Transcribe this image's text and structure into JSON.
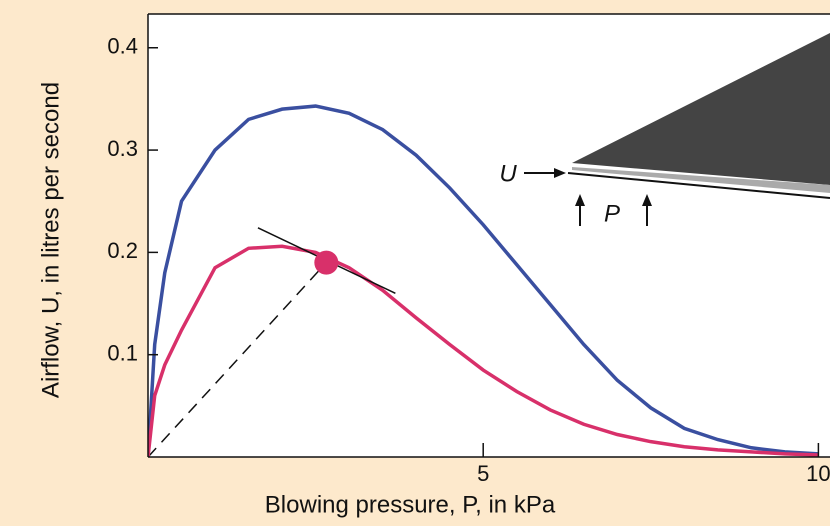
{
  "chart_data": {
    "type": "line",
    "x_label": "Blowing pressure, P, in kPa",
    "y_label": "Airflow, U, in litres per second",
    "x": [
      0,
      0.1,
      0.25,
      0.5,
      1,
      1.5,
      2,
      2.5,
      3,
      3.5,
      4,
      4.5,
      5,
      5.5,
      6,
      6.5,
      7,
      7.5,
      8,
      8.5,
      9,
      9.5,
      10
    ],
    "series": [
      {
        "color": "#3a4fa0",
        "values": [
          0,
          0.11,
          0.18,
          0.25,
          0.3,
          0.33,
          0.34,
          0.343,
          0.336,
          0.32,
          0.295,
          0.263,
          0.227,
          0.188,
          0.149,
          0.11,
          0.075,
          0.048,
          0.028,
          0.017,
          0.009,
          0.005,
          0.003
        ]
      },
      {
        "color": "#d8306a",
        "values": [
          0,
          0.06,
          0.09,
          0.124,
          0.185,
          0.204,
          0.206,
          0.2,
          0.185,
          0.163,
          0.136,
          0.11,
          0.085,
          0.064,
          0.046,
          0.032,
          0.022,
          0.015,
          0.01,
          0.007,
          0.005,
          0.003,
          0.002
        ]
      }
    ],
    "point": {
      "x": 2.66,
      "y": 0.19,
      "color": "#d8306a"
    },
    "tangent": {
      "x": [
        1.64,
        3.69
      ],
      "y": [
        0.224,
        0.16
      ]
    },
    "secant": {
      "x": [
        0,
        2.66
      ],
      "y": [
        0,
        0.19
      ]
    },
    "xlim": [
      0,
      10.18
    ],
    "ylim": [
      0,
      0.433
    ],
    "xticks": [
      5,
      10
    ],
    "yticks": [
      0.1,
      0.2,
      0.3,
      0.4
    ]
  },
  "inset": {
    "flow_label": "U",
    "pressure_label": "P"
  }
}
